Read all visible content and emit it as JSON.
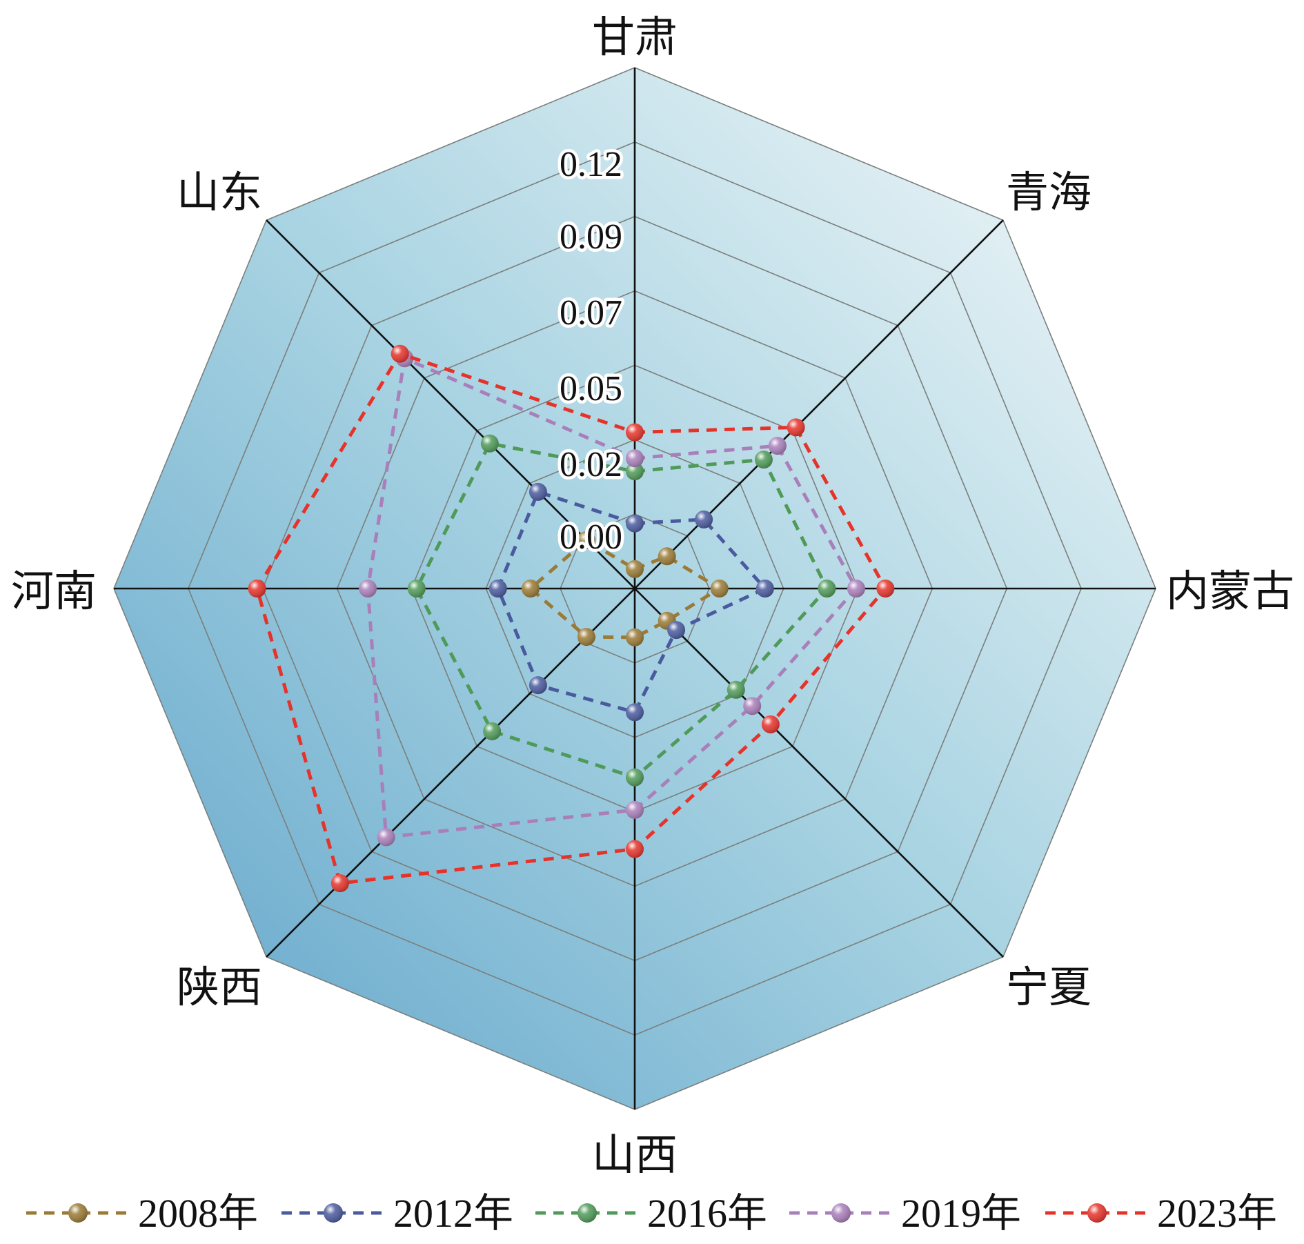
{
  "chart_data": {
    "type": "radar",
    "title": "",
    "axes": [
      "甘肃",
      "青海",
      "内蒙古",
      "宁夏",
      "山西",
      "陕西",
      "河南",
      "山东"
    ],
    "tick_labels": [
      "0.00",
      "0.02",
      "0.05",
      "0.07",
      "0.09",
      "0.12"
    ],
    "range": [
      0,
      0.16
    ],
    "grid": true,
    "legend": "bottom",
    "series": [
      {
        "name": "2008年",
        "color": "#9a7a35",
        "values": [
          0.006,
          0.014,
          0.026,
          0.014,
          0.015,
          0.021,
          0.032,
          0.021
        ]
      },
      {
        "name": "2012年",
        "color": "#4a5a9e",
        "values": [
          0.02,
          0.03,
          0.04,
          0.018,
          0.038,
          0.042,
          0.042,
          0.042
        ]
      },
      {
        "name": "2016年",
        "color": "#4f9a58",
        "values": [
          0.036,
          0.056,
          0.059,
          0.044,
          0.058,
          0.062,
          0.067,
          0.063
        ]
      },
      {
        "name": "2019年",
        "color": "#a97fba",
        "values": [
          0.04,
          0.062,
          0.068,
          0.051,
          0.068,
          0.108,
          0.082,
          0.1
        ]
      },
      {
        "name": "2023年",
        "color": "#e6332a",
        "values": [
          0.048,
          0.07,
          0.077,
          0.059,
          0.08,
          0.128,
          0.116,
          0.102
        ]
      }
    ]
  }
}
